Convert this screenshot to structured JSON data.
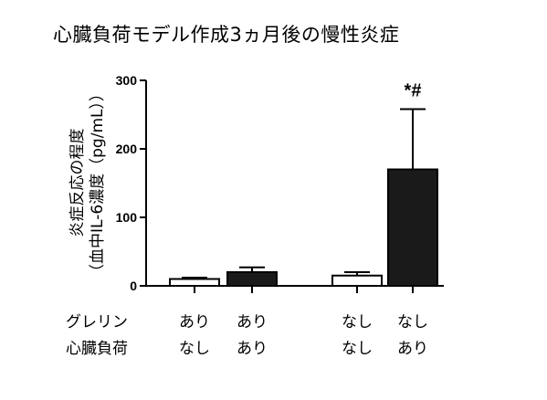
{
  "chart_data": {
    "type": "bar",
    "title": "心臓負荷モデル作成3ヵ月後の慢性炎症",
    "ylabel_line1": "炎症反応の程度",
    "ylabel_line2": "（血中IL-6濃度（pg/mL））",
    "ylim": [
      0,
      300
    ],
    "yticks": [
      0,
      100,
      200,
      300
    ],
    "grid": false,
    "bars": [
      {
        "value": 10,
        "error": 2,
        "fill": "#ffffff",
        "annotation": ""
      },
      {
        "value": 20,
        "error": 7,
        "fill": "#1a1a1a",
        "annotation": ""
      },
      {
        "value": 15,
        "error": 5,
        "fill": "#ffffff",
        "annotation": ""
      },
      {
        "value": 170,
        "error": 88,
        "fill": "#1a1a1a",
        "annotation": "*#"
      }
    ],
    "conditions": [
      {
        "label": "グレリン",
        "values": [
          "あり",
          "あり",
          "なし",
          "なし"
        ]
      },
      {
        "label": "心臓負荷",
        "values": [
          "なし",
          "あり",
          "なし",
          "あり"
        ]
      }
    ]
  },
  "colors": {
    "axis": "#000000",
    "dark_bar": "#1a1a1a",
    "light_bar": "#ffffff"
  }
}
